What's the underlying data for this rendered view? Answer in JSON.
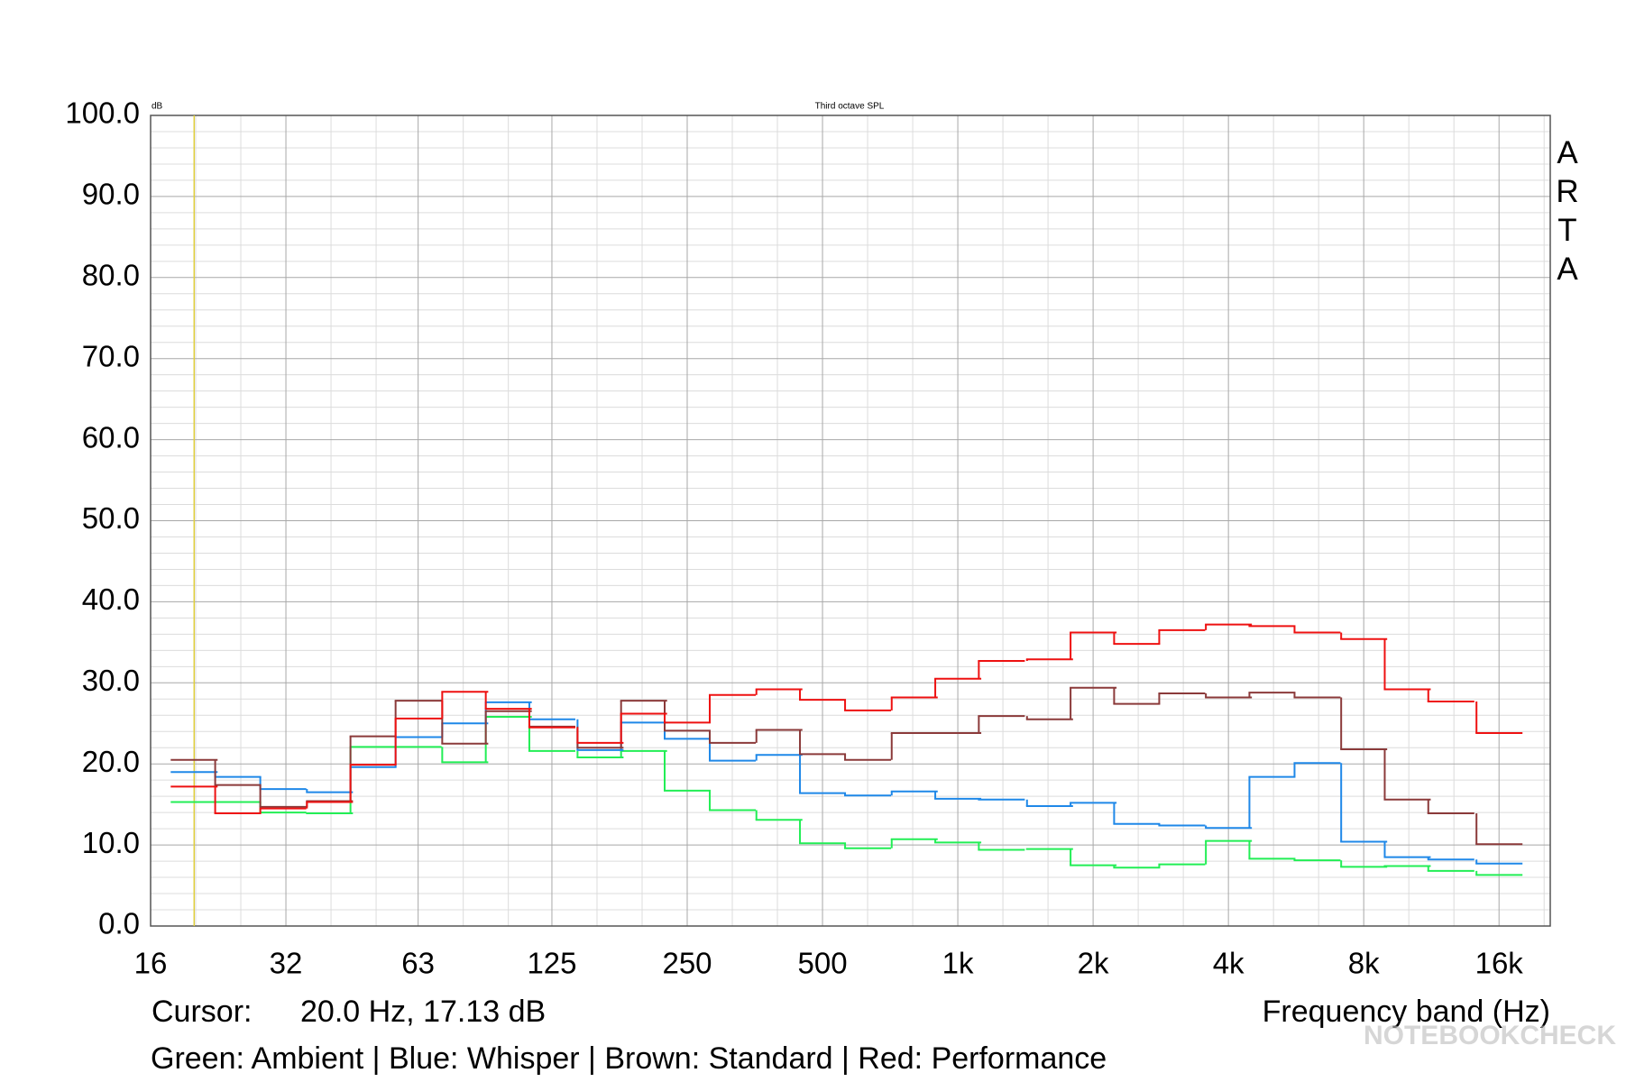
{
  "chart_data": {
    "type": "step",
    "title": "Third octave SPL",
    "y_unit": "dB",
    "brand": "ARTA",
    "xlabel": "Frequency band (Hz)",
    "caption": "Green: Ambient | Blue: Whisper | Brown: Standard | Red: Performance",
    "cursor": {
      "label": "Cursor:",
      "text": "20.0 Hz, 17.13 dB",
      "x": 20,
      "color": "#e0cf3c"
    },
    "watermark": "NOTEBOOKCHECK",
    "xscale": "log",
    "xlim": [
      16,
      20800
    ],
    "xticks": [
      16,
      32,
      63,
      125,
      250,
      500,
      {
        "value": 1000,
        "label": "1k"
      },
      {
        "value": 2000,
        "label": "2k"
      },
      {
        "value": 4000,
        "label": "4k"
      },
      {
        "value": 8000,
        "label": "8k"
      },
      {
        "value": 16000,
        "label": "16k"
      }
    ],
    "ylim": [
      0,
      100
    ],
    "yticks": [
      {
        "value": 0,
        "label": "0.0"
      },
      {
        "value": 10,
        "label": "10.0"
      },
      {
        "value": 20,
        "label": "20.0"
      },
      {
        "value": 30,
        "label": "30.0"
      },
      {
        "value": 40,
        "label": "40.0"
      },
      {
        "value": 50,
        "label": "50.0"
      },
      {
        "value": 60,
        "label": "60.0"
      },
      {
        "value": 70,
        "label": "70.0"
      },
      {
        "value": 80,
        "label": "80.0"
      },
      {
        "value": 90,
        "label": "90.0"
      },
      {
        "value": 100,
        "label": "100.0"
      }
    ],
    "grid": true,
    "minor_grid": true,
    "x": [
      20,
      25,
      31.5,
      40,
      50,
      63,
      80,
      100,
      125,
      160,
      200,
      250,
      315,
      400,
      500,
      630,
      800,
      1000,
      1250,
      1600,
      2000,
      2500,
      3150,
      4000,
      5000,
      6300,
      8000,
      10000,
      12500,
      16000
    ],
    "series": [
      {
        "color": "#22ee55",
        "values": [
          15.3,
          15.3,
          14.0,
          13.9,
          22.1,
          22.1,
          20.2,
          25.8,
          21.6,
          20.8,
          21.6,
          16.7,
          14.3,
          13.1,
          10.2,
          9.6,
          10.7,
          10.3,
          9.4,
          9.5,
          7.5,
          7.2,
          7.6,
          10.5,
          8.3,
          8.1,
          7.3,
          7.4,
          6.8,
          6.3
        ]
      },
      {
        "color": "#1f88e8",
        "values": [
          19.0,
          18.4,
          16.9,
          16.5,
          19.6,
          23.3,
          25.0,
          27.6,
          25.5,
          21.7,
          25.1,
          23.1,
          20.4,
          21.1,
          16.4,
          16.1,
          16.6,
          15.7,
          15.6,
          14.8,
          15.2,
          12.6,
          12.4,
          12.1,
          18.4,
          20.1,
          10.4,
          8.5,
          8.2,
          7.7
        ]
      },
      {
        "color": "#8b3a3a",
        "values": [
          20.5,
          17.4,
          14.7,
          15.4,
          23.4,
          27.8,
          22.5,
          26.5,
          24.6,
          22.0,
          27.8,
          24.1,
          22.6,
          24.2,
          21.2,
          20.5,
          23.8,
          23.8,
          25.9,
          25.5,
          29.4,
          27.4,
          28.7,
          28.2,
          28.8,
          28.2,
          21.8,
          15.6,
          13.9,
          10.1
        ]
      },
      {
        "color": "#ee1111",
        "values": [
          17.2,
          13.9,
          14.5,
          15.3,
          19.9,
          25.6,
          28.9,
          26.8,
          24.5,
          22.6,
          26.2,
          25.1,
          28.5,
          29.2,
          27.9,
          26.6,
          28.2,
          30.5,
          32.7,
          32.9,
          36.2,
          34.8,
          36.5,
          37.2,
          37.0,
          36.2,
          35.4,
          29.2,
          27.7,
          23.8
        ]
      }
    ]
  }
}
